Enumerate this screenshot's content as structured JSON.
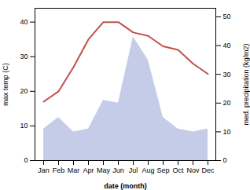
{
  "chart_data": {
    "type": "line",
    "categories": [
      "Jan",
      "Feb",
      "Mar",
      "Apr",
      "May",
      "Jun",
      "Jul",
      "Aug",
      "Sep",
      "Oct",
      "Nov",
      "Dec"
    ],
    "xlabel": "date (month)",
    "ylabel": "max temp (C)",
    "y2label": "med. precipitation (kg/m2)",
    "ylim": [
      0,
      44
    ],
    "yticks": [
      0,
      10,
      20,
      30,
      40
    ],
    "y2lim": [
      0,
      53
    ],
    "y2ticks": [
      0,
      10,
      20,
      30,
      40,
      50
    ],
    "grid": false,
    "series": [
      {
        "type": "area",
        "axis": "y2",
        "color": "#c5cce8",
        "values": [
          11,
          15,
          10,
          11,
          21,
          20,
          43,
          35,
          15,
          11,
          10,
          11
        ]
      },
      {
        "type": "line",
        "color": "#c0504d",
        "values": [
          17,
          20,
          27,
          35,
          40,
          40,
          37,
          36,
          33,
          32,
          28,
          25
        ]
      }
    ]
  }
}
